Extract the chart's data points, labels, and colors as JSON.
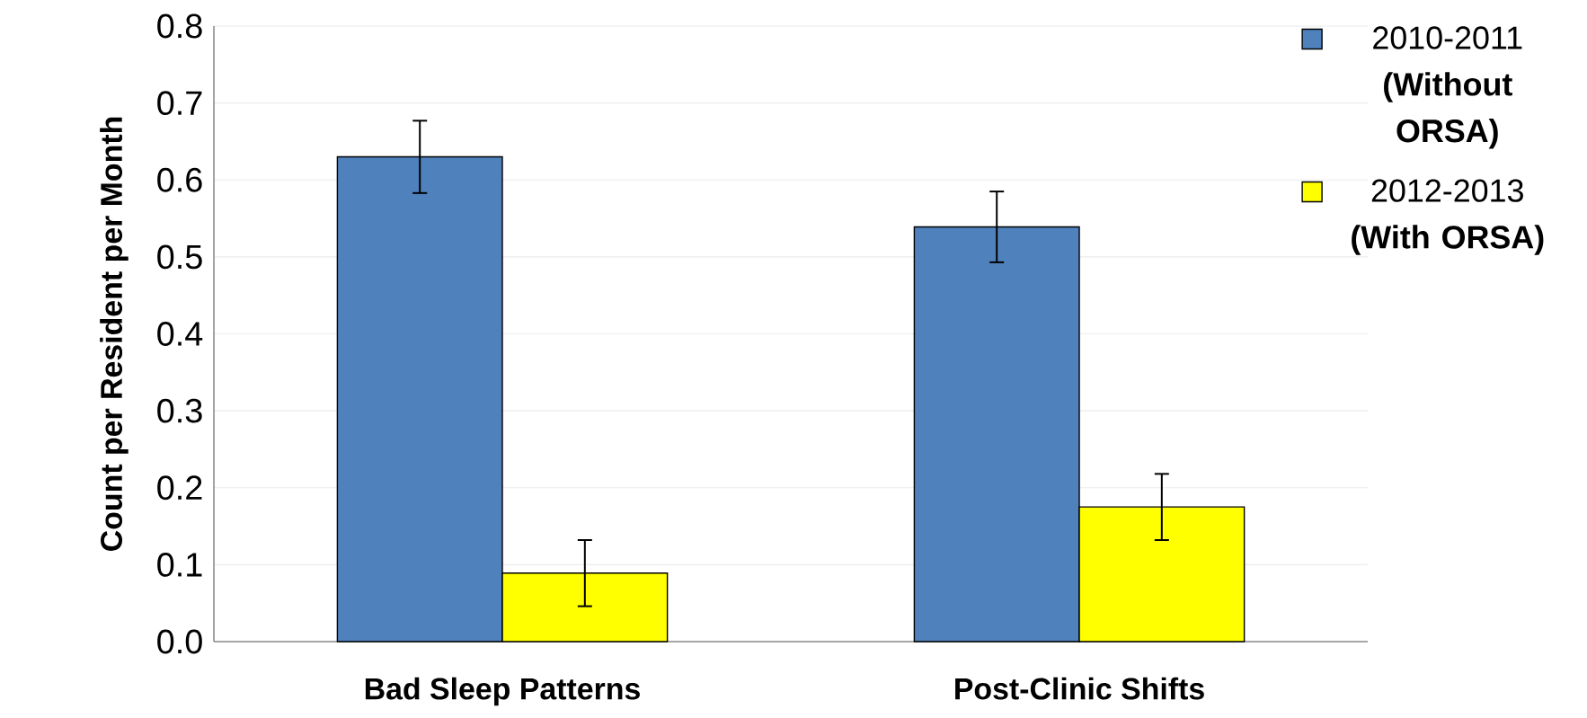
{
  "chart_data": {
    "type": "bar",
    "ylabel": "Count per Resident per Month",
    "categories": [
      "Bad Sleep Patterns",
      "Post-Clinic Shifts"
    ],
    "series": [
      {
        "name": "2010-2011 **(Without ORSA)**",
        "color": "#4f81bd",
        "values": [
          0.63,
          0.539
        ],
        "errors": [
          0.047,
          0.046
        ]
      },
      {
        "name": "2012-2013 **(With ORSA)**",
        "color": "#ffff00",
        "values": [
          0.089,
          0.175
        ],
        "errors": [
          0.043,
          0.043
        ]
      }
    ],
    "ylim": [
      0,
      0.8
    ],
    "yticks": [
      {
        "value": 0,
        "label": "0.0"
      },
      {
        "value": 0.1,
        "label": "0.1"
      },
      {
        "value": 0.2,
        "label": "0.2"
      },
      {
        "value": 0.3,
        "label": "0.3"
      },
      {
        "value": 0.4,
        "label": "0.4"
      },
      {
        "value": 0.5,
        "label": "0.5"
      },
      {
        "value": 0.6,
        "label": "0.6"
      },
      {
        "value": 0.7,
        "label": "0.7"
      },
      {
        "value": 0.8,
        "label": "0.8"
      }
    ],
    "grid": "y",
    "legend": "top right"
  }
}
